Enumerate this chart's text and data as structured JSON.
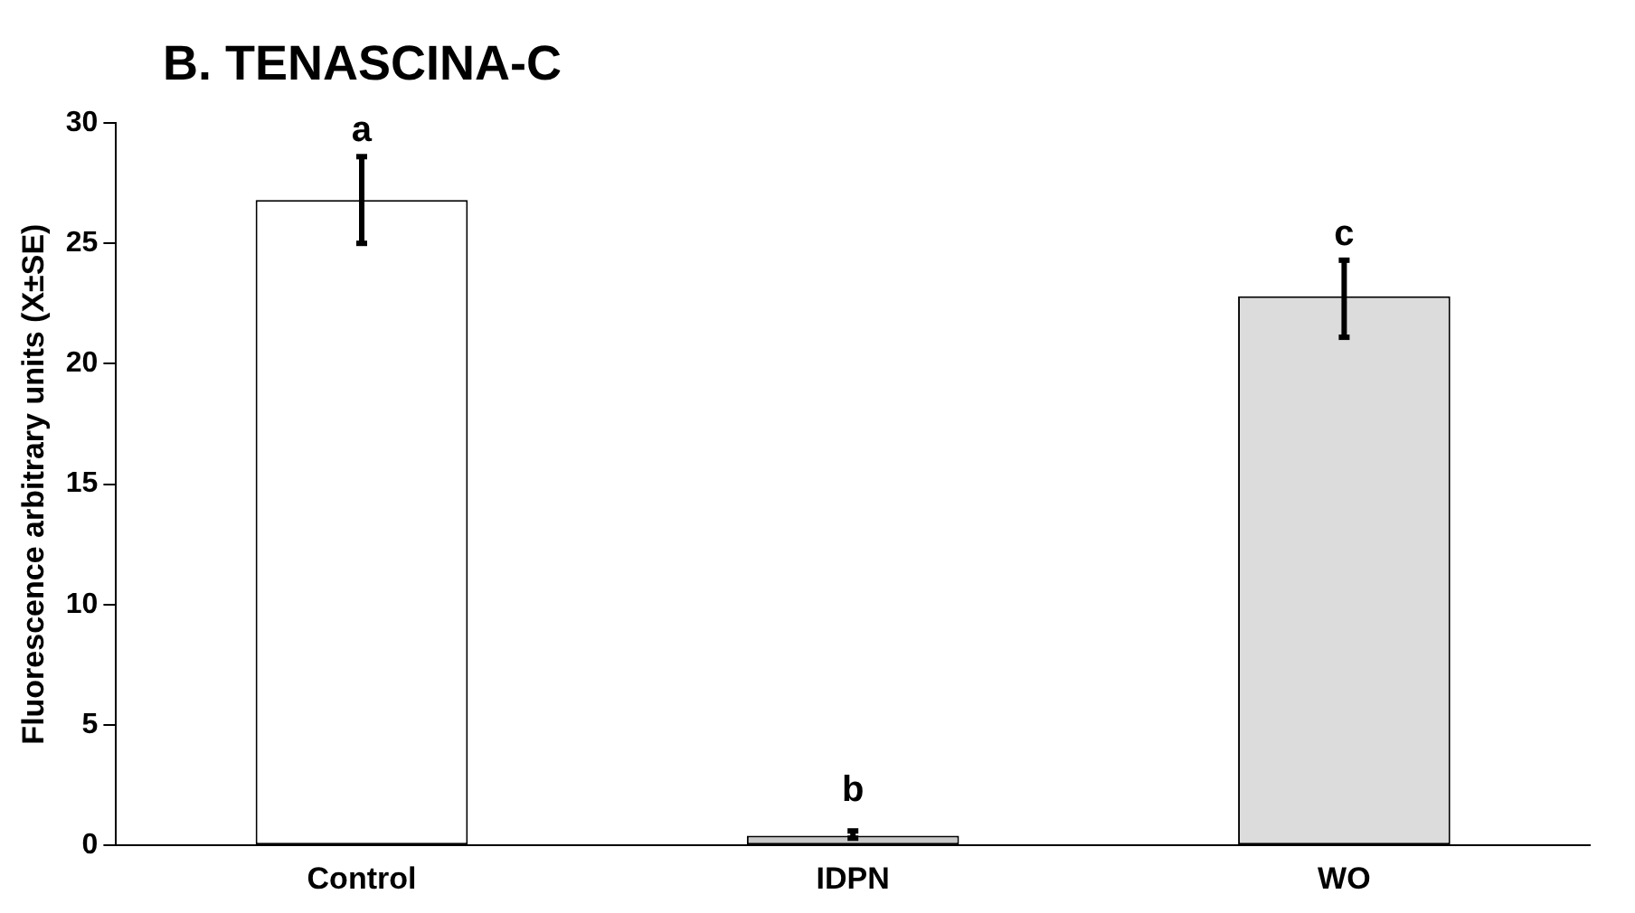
{
  "chart_data": {
    "type": "bar",
    "title": "B. TENASCINA-C",
    "ylabel": "Fluorescence arbitrary units (X±SE)",
    "categories": [
      "Control",
      "IDPN",
      "WO"
    ],
    "values": [
      26.8,
      0.4,
      22.8
    ],
    "colors": [
      "#ffffff",
      "#c8c8c8",
      "#dcdcdc"
    ],
    "errors": [
      [
        25.0,
        28.6
      ],
      [
        0.3,
        0.6
      ],
      [
        21.1,
        24.3
      ]
    ],
    "ylim": [
      0,
      30
    ],
    "yticks": [
      0,
      5,
      10,
      15,
      20,
      25,
      30
    ],
    "grid": false,
    "legend": false,
    "annotations": [
      "a",
      "b",
      "c"
    ]
  }
}
